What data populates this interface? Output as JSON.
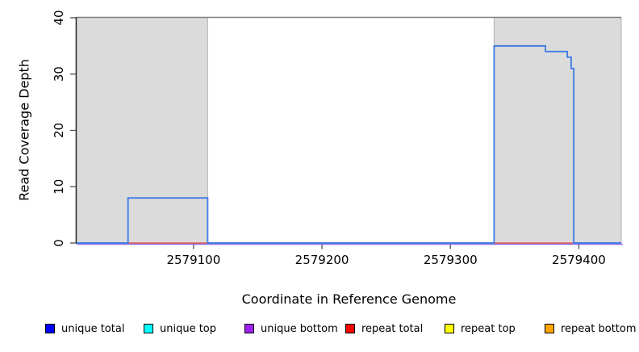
{
  "figure": {
    "xlabel": "Coordinate in Reference Genome",
    "ylabel": "Read Coverage Depth"
  },
  "legend": {
    "items": [
      {
        "label": "unique total",
        "color": "#0000FF"
      },
      {
        "label": "unique top",
        "color": "#00FFFF"
      },
      {
        "label": "unique bottom",
        "color": "#A020F0"
      },
      {
        "label": "repeat total",
        "color": "#FF0000"
      },
      {
        "label": "repeat top",
        "color": "#FFFF00"
      },
      {
        "label": "repeat bottom",
        "color": "#FFA500"
      }
    ]
  },
  "chart_data": {
    "type": "line",
    "title": "",
    "xlabel": "Coordinate in Reference Genome",
    "ylabel": "Read Coverage Depth",
    "xlim": [
      2579009,
      2579433
    ],
    "ylim": [
      0,
      40
    ],
    "x_ticks": [
      2579100,
      2579200,
      2579300,
      2579400
    ],
    "y_ticks": [
      0,
      10,
      20,
      30,
      40
    ],
    "grid": false,
    "legend_position": "bottom",
    "shaded_regions": [
      [
        2579009,
        2579111
      ],
      [
        2579334,
        2579433
      ]
    ],
    "colors": {
      "shading": "#DBDBDB",
      "shading_edge": "#B3B3B3",
      "top_border": "#7F7F7F",
      "axis": "#2E2E2E",
      "tick": "#4D4D4D"
    },
    "series": [
      {
        "name": "unique total",
        "legend_color": "#0000FF",
        "line_color": "#437DE8",
        "points": [
          [
            2579009,
            0
          ],
          [
            2579049,
            0
          ],
          [
            2579049,
            8
          ],
          [
            2579111,
            8
          ],
          [
            2579111,
            0
          ],
          [
            2579334,
            0
          ],
          [
            2579334,
            35
          ],
          [
            2579374,
            35
          ],
          [
            2579374,
            34
          ],
          [
            2579391,
            34
          ],
          [
            2579391,
            33
          ],
          [
            2579394,
            33
          ],
          [
            2579394,
            31
          ],
          [
            2579396,
            31
          ],
          [
            2579396,
            0
          ],
          [
            2579433,
            0
          ]
        ]
      },
      {
        "name": "unique top",
        "legend_color": "#00FFFF",
        "line_color": "#00FFFF",
        "points": [
          [
            2579009,
            0
          ],
          [
            2579433,
            0
          ]
        ]
      },
      {
        "name": "unique bottom",
        "legend_color": "#A020F0",
        "line_color": "#9470E6",
        "points": [
          [
            2579009,
            0
          ],
          [
            2579433,
            0
          ]
        ]
      },
      {
        "name": "repeat total",
        "legend_color": "#FF0000",
        "line_color": "#E85B5B",
        "points": [
          [
            2579009,
            0
          ],
          [
            2579433,
            0
          ]
        ]
      },
      {
        "name": "repeat top",
        "legend_color": "#FFFF00",
        "line_color": "#FFFF00",
        "points": [
          [
            2579009,
            0
          ],
          [
            2579433,
            0
          ]
        ]
      },
      {
        "name": "repeat bottom",
        "legend_color": "#FFA500",
        "line_color": "#FFA500",
        "points": [
          [
            2579009,
            0
          ],
          [
            2579433,
            0
          ]
        ]
      }
    ]
  }
}
